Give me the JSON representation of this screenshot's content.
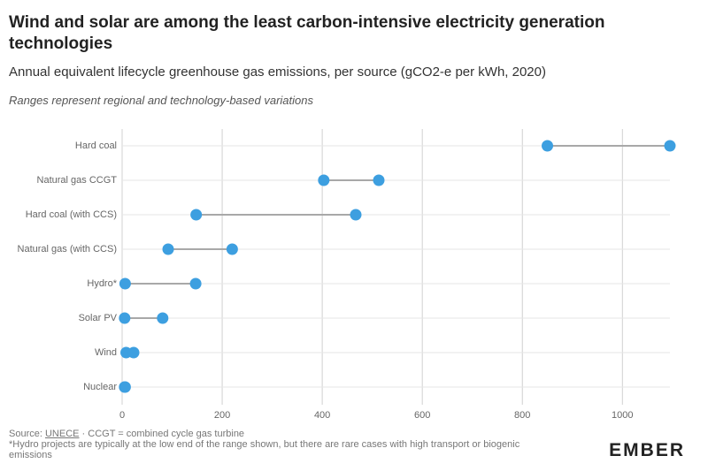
{
  "chart_data": {
    "type": "dumbbell",
    "title": "Wind and solar are among the least carbon-intensive electricity generation technologies",
    "subtitle": "Annual equivalent lifecycle greenhouse gas emissions, per source (gCO2-e per kWh, 2020)",
    "note": "Ranges represent regional and technology-based variations",
    "categories": [
      "Hard coal",
      "Natural gas CCGT",
      "Hard coal (with CCS)",
      "Natural gas (with CCS)",
      "Hydro*",
      "Solar PV",
      "Wind",
      "Nuclear"
    ],
    "low": [
      850,
      403,
      148,
      92,
      6,
      5,
      8,
      5
    ],
    "high": [
      1095,
      513,
      467,
      220,
      147,
      81,
      23,
      6
    ],
    "color": "#3d9fe0",
    "line_color": "#a8a8a8",
    "xlim": [
      0,
      1095
    ],
    "xticks": [
      0,
      200,
      400,
      600,
      800,
      1000
    ],
    "grid": true
  },
  "footer": {
    "source_prefix": "Source: ",
    "source_link": "UNECE",
    "source_rest": " · CCGT = combined cycle gas turbine",
    "footnote": "*Hydro projects are typically at the low end of the range shown, but there are rare cases with high transport or biogenic emissions",
    "logo": "EMBER"
  }
}
